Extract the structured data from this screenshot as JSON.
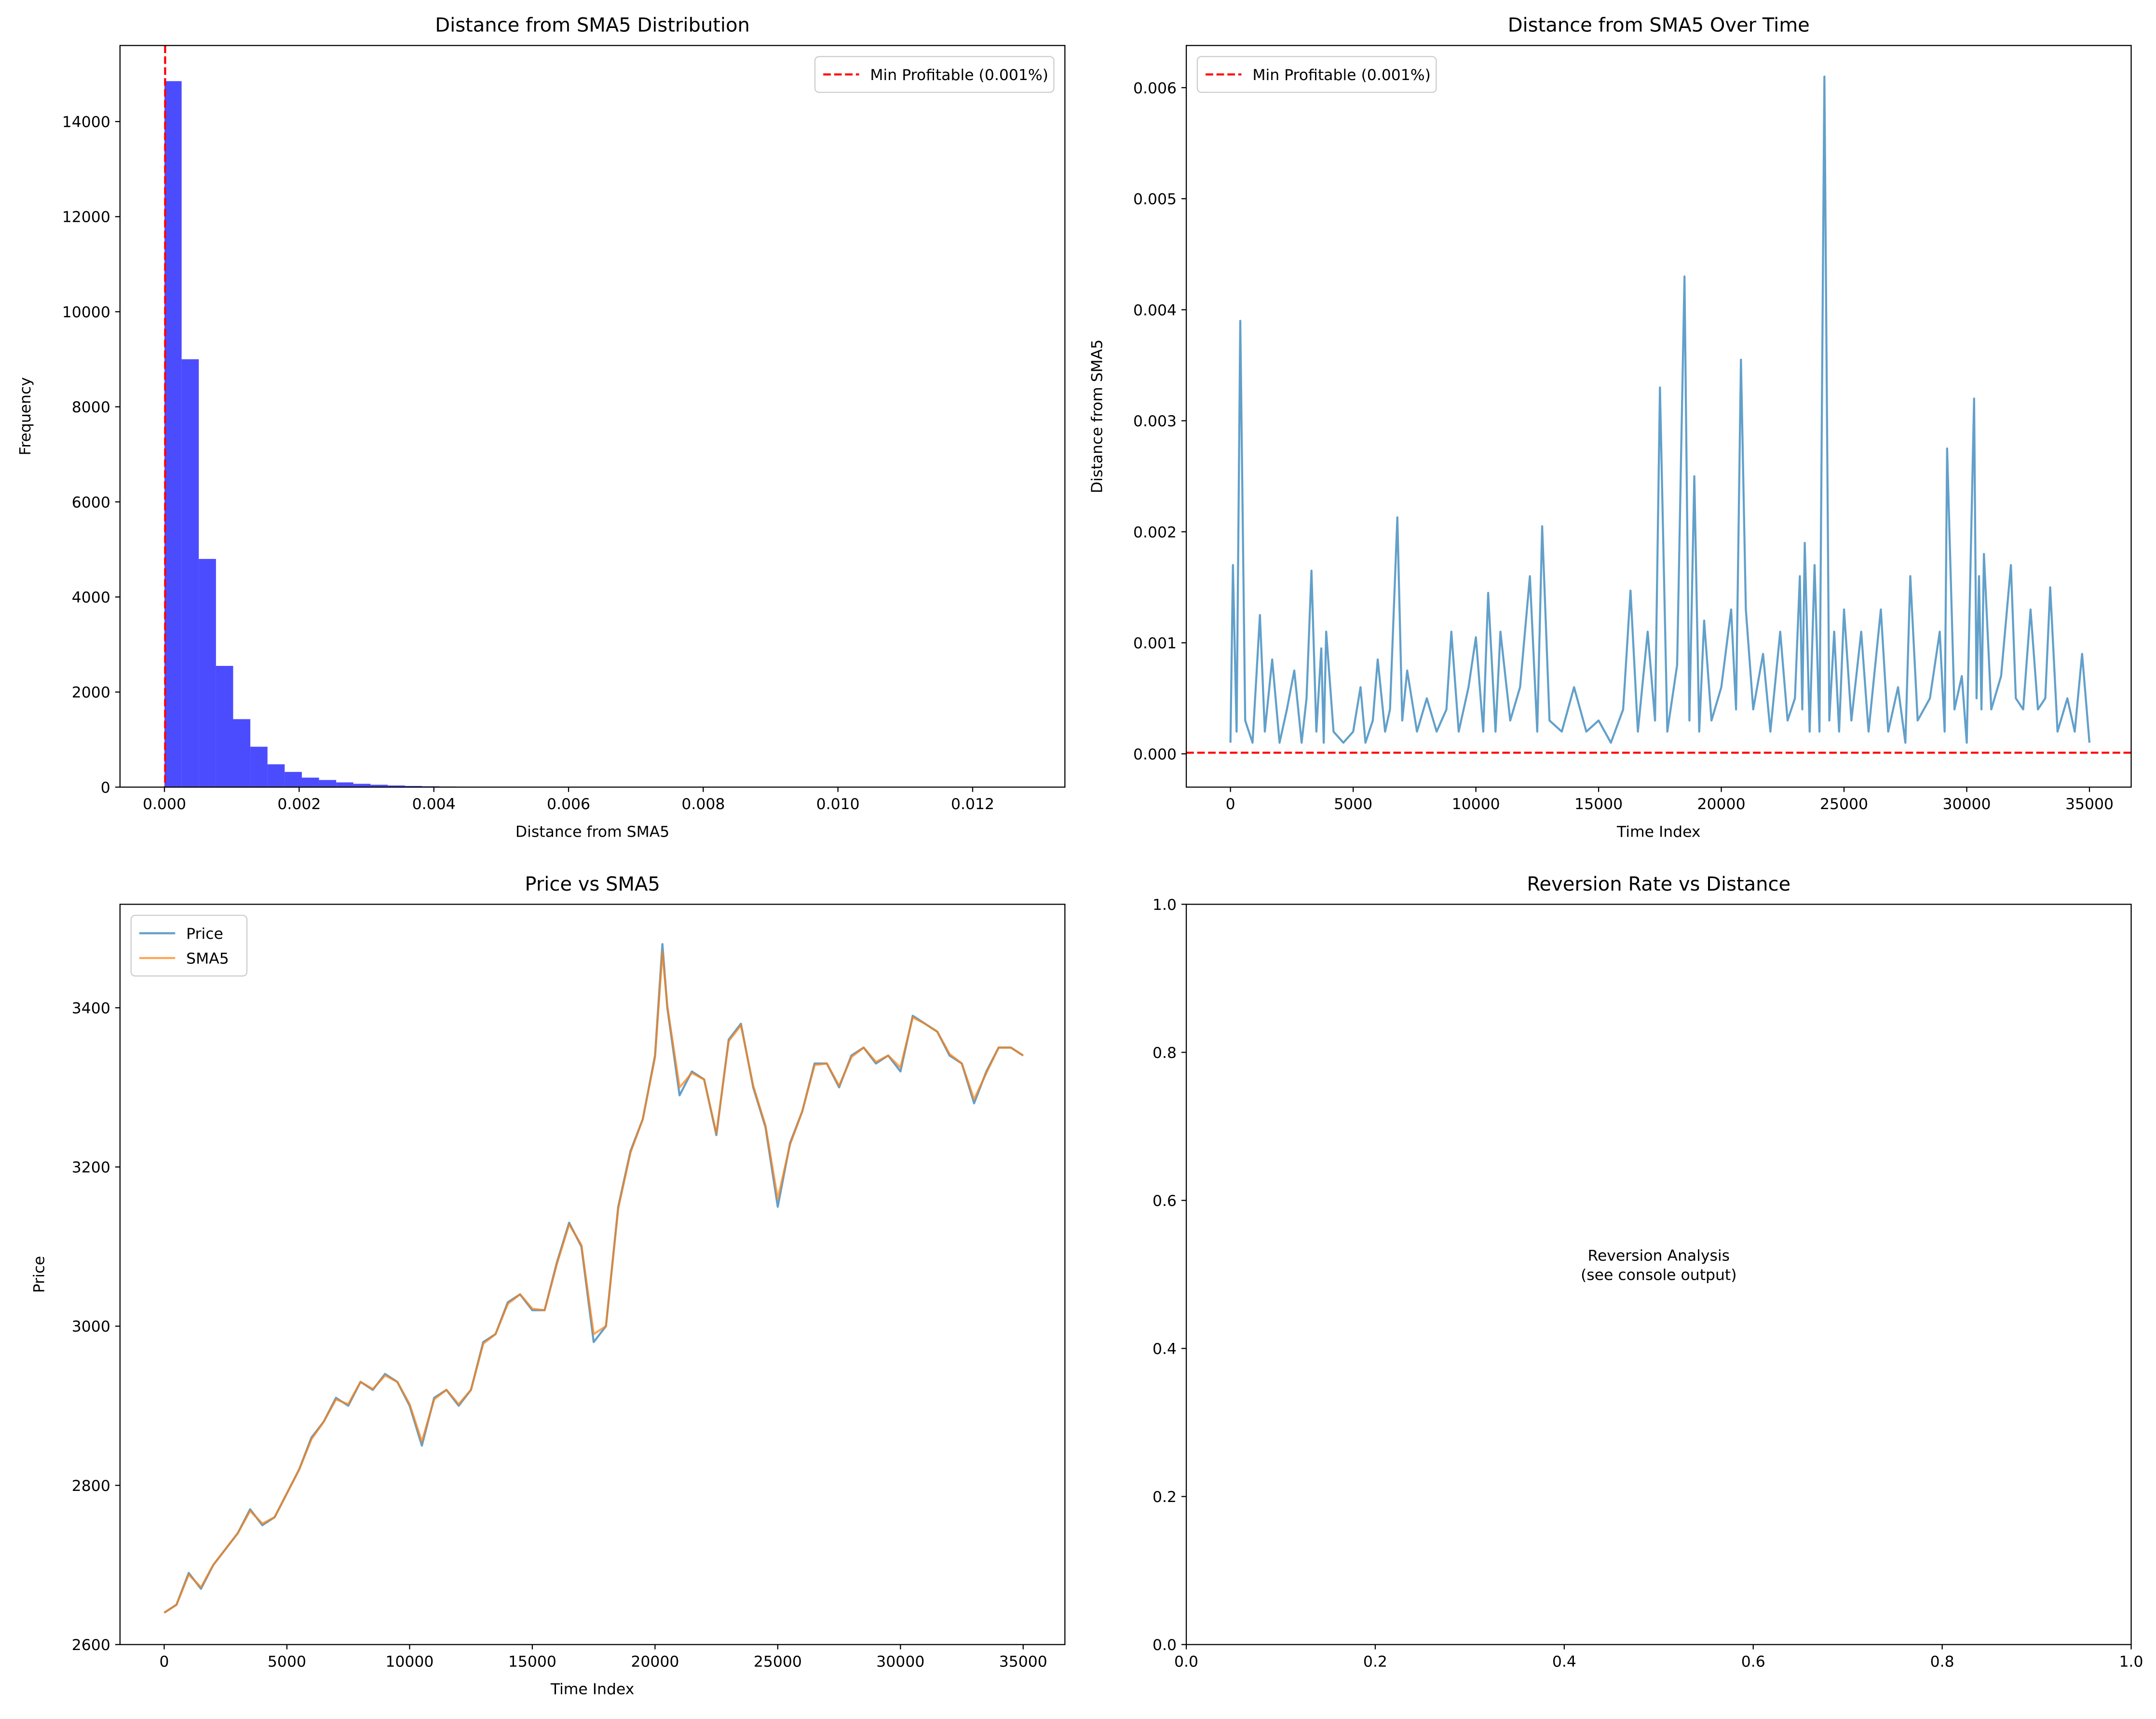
{
  "chart_data": [
    {
      "type": "histogram",
      "title": "Distance from SMA5 Distribution",
      "xlabel": "Distance from SMA5",
      "ylabel": "Frequency",
      "bins": [
        0,
        0.000255,
        0.00051,
        0.000765,
        0.00102,
        0.001275,
        0.00153,
        0.001785,
        0.00204,
        0.002295,
        0.00255,
        0.002805,
        0.00306,
        0.003315,
        0.00357,
        0.003825,
        0.00408,
        0.004335,
        0.00459,
        0.004845,
        0.0051,
        0.005355,
        0.00561,
        0.005865,
        0.00612,
        0.006375,
        0.00663,
        0.006885,
        0.00714,
        0.007395,
        0.00765,
        0.007905,
        0.00816,
        0.008415,
        0.00867,
        0.008925,
        0.00918,
        0.009435,
        0.00969,
        0.009945,
        0.0102,
        0.010455,
        0.01071,
        0.010965,
        0.01122,
        0.011475,
        0.01173,
        0.011985,
        0.01224,
        0.012495,
        0.01275
      ],
      "values": [
        14850,
        9000,
        4800,
        2550,
        1430,
        850,
        480,
        320,
        200,
        150,
        100,
        70,
        50,
        35,
        25,
        18,
        12,
        8,
        6,
        5,
        4,
        3,
        3,
        2,
        2,
        2,
        1,
        1,
        1,
        1,
        1,
        1,
        0,
        1,
        0,
        0,
        1,
        0,
        0,
        0,
        0,
        0,
        0,
        0,
        0,
        0,
        0,
        0,
        0,
        1
      ],
      "color": "#0000ff",
      "alpha": 0.7,
      "xlim": [
        -0.00066,
        0.01337
      ],
      "ylim": [
        0,
        15600
      ],
      "xticks": [
        {
          "value": 0,
          "label": "0.000"
        },
        {
          "value": 0.002,
          "label": "0.002"
        },
        {
          "value": 0.004,
          "label": "0.004"
        },
        {
          "value": 0.006,
          "label": "0.006"
        },
        {
          "value": 0.008,
          "label": "0.008"
        },
        {
          "value": 0.01,
          "label": "0.010"
        },
        {
          "value": 0.012,
          "label": "0.012"
        }
      ],
      "yticks": [
        0,
        2000,
        4000,
        6000,
        8000,
        10000,
        12000,
        14000
      ],
      "reference_line": {
        "name": "Min Profitable (0.001%)",
        "value": 1e-05,
        "color": "#ff0000",
        "orientation": "vertical"
      },
      "legend": "upper right"
    },
    {
      "type": "line",
      "title": "Distance from SMA5 Over Time",
      "xlabel": "Time Index",
      "ylabel": "Distance from SMA5",
      "x": [
        0,
        100,
        250,
        400,
        600,
        900,
        1200,
        1400,
        1700,
        2000,
        2300,
        2600,
        2900,
        3100,
        3300,
        3500,
        3700,
        3800,
        3900,
        4200,
        4600,
        5000,
        5300,
        5500,
        5800,
        6000,
        6300,
        6500,
        6800,
        7000,
        7200,
        7600,
        8000,
        8400,
        8800,
        9000,
        9300,
        9700,
        10000,
        10300,
        10500,
        10800,
        11000,
        11400,
        11800,
        12200,
        12500,
        12700,
        13000,
        13500,
        14000,
        14500,
        15000,
        15500,
        16000,
        16300,
        16600,
        17000,
        17300,
        17500,
        17800,
        18200,
        18500,
        18700,
        18900,
        19100,
        19300,
        19600,
        20000,
        20400,
        20600,
        20800,
        21000,
        21300,
        21700,
        22000,
        22400,
        22700,
        23000,
        23200,
        23300,
        23400,
        23600,
        23800,
        24000,
        24200,
        24400,
        24600,
        24800,
        25000,
        25300,
        25700,
        26000,
        26500,
        26800,
        27200,
        27500,
        27700,
        28000,
        28500,
        28900,
        29100,
        29200,
        29500,
        29800,
        30000,
        30300,
        30400,
        30500,
        30600,
        30700,
        31000,
        31400,
        31800,
        32000,
        32300,
        32600,
        32900,
        33200,
        33400,
        33700,
        34100,
        34400,
        34700,
        35000
      ],
      "series": [
        {
          "name": "Distance",
          "color": "#1f77b4",
          "values": [
            0.0001,
            0.0017,
            0.0002,
            0.0039,
            0.0003,
            0.0001,
            0.00125,
            0.0002,
            0.00085,
            0.0001,
            0.0004,
            0.00075,
            0.0001,
            0.0005,
            0.00165,
            0.0002,
            0.00095,
            0.0001,
            0.0011,
            0.0002,
            0.0001,
            0.0002,
            0.0006,
            0.0001,
            0.0003,
            0.00085,
            0.0002,
            0.0004,
            0.00213,
            0.0003,
            0.00075,
            0.0002,
            0.0005,
            0.0002,
            0.0004,
            0.0011,
            0.0002,
            0.0006,
            0.00105,
            0.0002,
            0.00145,
            0.0002,
            0.0011,
            0.0003,
            0.0006,
            0.0016,
            0.0002,
            0.00205,
            0.0003,
            0.0002,
            0.0006,
            0.0002,
            0.0003,
            0.0001,
            0.0004,
            0.00147,
            0.0002,
            0.0011,
            0.0003,
            0.0033,
            0.0002,
            0.0008,
            0.0043,
            0.0003,
            0.0025,
            0.0002,
            0.0012,
            0.0003,
            0.0006,
            0.0013,
            0.0004,
            0.00355,
            0.0013,
            0.0004,
            0.0009,
            0.0002,
            0.0011,
            0.0003,
            0.0005,
            0.0016,
            0.0004,
            0.0019,
            0.0002,
            0.0017,
            0.0002,
            0.0061,
            0.0003,
            0.0011,
            0.0002,
            0.0013,
            0.0003,
            0.0011,
            0.0002,
            0.0013,
            0.0002,
            0.0006,
            0.0001,
            0.0016,
            0.0003,
            0.0005,
            0.0011,
            0.0002,
            0.00275,
            0.0004,
            0.0007,
            0.0001,
            0.0032,
            0.0005,
            0.0016,
            0.0004,
            0.0018,
            0.0004,
            0.0007,
            0.0017,
            0.0005,
            0.0004,
            0.0013,
            0.0004,
            0.0005,
            0.0015,
            0.0002,
            0.0005,
            0.0002,
            0.0009,
            0.0001
          ]
        }
      ],
      "alpha": 0.7,
      "xlim": [
        -1800,
        36700
      ],
      "ylim": [
        -0.0003,
        0.00638
      ],
      "xticks": [
        0,
        5000,
        10000,
        15000,
        20000,
        25000,
        30000,
        35000
      ],
      "yticks": [
        {
          "value": 0,
          "label": "0.000"
        },
        {
          "value": 0.001,
          "label": "0.001"
        },
        {
          "value": 0.002,
          "label": "0.002"
        },
        {
          "value": 0.003,
          "label": "0.003"
        },
        {
          "value": 0.004,
          "label": "0.004"
        },
        {
          "value": 0.005,
          "label": "0.005"
        },
        {
          "value": 0.006,
          "label": "0.006"
        }
      ],
      "reference_line": {
        "name": "Min Profitable (0.001%)",
        "value": 1e-05,
        "color": "#ff0000",
        "orientation": "horizontal"
      },
      "legend": "upper left",
      "legend_series": false
    },
    {
      "type": "line",
      "title": "Price vs SMA5",
      "xlabel": "Time Index",
      "ylabel": "Price",
      "x": [
        0,
        500,
        1000,
        1500,
        2000,
        2500,
        3000,
        3500,
        4000,
        4500,
        5000,
        5500,
        6000,
        6500,
        7000,
        7500,
        8000,
        8500,
        9000,
        9500,
        10000,
        10500,
        11000,
        11500,
        12000,
        12500,
        13000,
        13500,
        14000,
        14500,
        15000,
        15500,
        16000,
        16500,
        17000,
        17500,
        18000,
        18500,
        19000,
        19500,
        20000,
        20300,
        20500,
        21000,
        21500,
        22000,
        22500,
        23000,
        23500,
        24000,
        24500,
        25000,
        25500,
        26000,
        26500,
        27000,
        27500,
        28000,
        28500,
        29000,
        29500,
        30000,
        30500,
        31000,
        31500,
        32000,
        32500,
        33000,
        33500,
        34000,
        34500,
        35000
      ],
      "series": [
        {
          "name": "Price",
          "color": "#1f77b4",
          "values": [
            2640,
            2650,
            2690,
            2670,
            2700,
            2720,
            2740,
            2770,
            2750,
            2760,
            2790,
            2820,
            2860,
            2880,
            2910,
            2900,
            2930,
            2920,
            2940,
            2930,
            2900,
            2850,
            2910,
            2920,
            2900,
            2920,
            2980,
            2990,
            3030,
            3040,
            3020,
            3020,
            3080,
            3130,
            3100,
            2980,
            3000,
            3150,
            3220,
            3260,
            3340,
            3480,
            3400,
            3290,
            3320,
            3310,
            3240,
            3360,
            3380,
            3300,
            3250,
            3150,
            3230,
            3270,
            3330,
            3330,
            3300,
            3340,
            3350,
            3330,
            3340,
            3320,
            3390,
            3380,
            3370,
            3340,
            3330,
            3280,
            3320,
            3350,
            3350,
            3340
          ]
        },
        {
          "name": "SMA5",
          "color": "#ff7f0e",
          "values": [
            2640,
            2650,
            2688,
            2672,
            2700,
            2720,
            2740,
            2768,
            2752,
            2760,
            2790,
            2820,
            2858,
            2880,
            2908,
            2902,
            2930,
            2921,
            2938,
            2930,
            2902,
            2855,
            2908,
            2920,
            2902,
            2920,
            2978,
            2990,
            3028,
            3040,
            3022,
            3020,
            3078,
            3128,
            3102,
            2990,
            3000,
            3148,
            3218,
            3260,
            3338,
            3470,
            3402,
            3300,
            3318,
            3310,
            3242,
            3358,
            3378,
            3302,
            3252,
            3160,
            3228,
            3270,
            3328,
            3330,
            3302,
            3338,
            3350,
            3332,
            3340,
            3325,
            3388,
            3380,
            3370,
            3342,
            3330,
            3285,
            3318,
            3350,
            3350,
            3340
          ]
        }
      ],
      "alpha": 0.7,
      "xlim": [
        -1800,
        36700
      ],
      "ylim": [
        2600,
        3530
      ],
      "xticks": [
        0,
        5000,
        10000,
        15000,
        20000,
        25000,
        30000,
        35000
      ],
      "yticks": [
        2600,
        2800,
        3000,
        3200,
        3400
      ],
      "legend": "upper left",
      "legend_series": true
    },
    {
      "type": "annotation",
      "title": "Reversion Rate vs Distance",
      "text": [
        "Reversion Analysis",
        "(see console output)"
      ],
      "xlim": [
        0,
        1
      ],
      "ylim": [
        0,
        1
      ],
      "xticks": [
        {
          "value": 0,
          "label": "0.0"
        },
        {
          "value": 0.2,
          "label": "0.2"
        },
        {
          "value": 0.4,
          "label": "0.4"
        },
        {
          "value": 0.6,
          "label": "0.6"
        },
        {
          "value": 0.8,
          "label": "0.8"
        },
        {
          "value": 1,
          "label": "1.0"
        }
      ],
      "yticks": [
        {
          "value": 0,
          "label": "0.0"
        },
        {
          "value": 0.2,
          "label": "0.2"
        },
        {
          "value": 0.4,
          "label": "0.4"
        },
        {
          "value": 0.6,
          "label": "0.6"
        },
        {
          "value": 0.8,
          "label": "0.8"
        },
        {
          "value": 1,
          "label": "1.0"
        }
      ]
    }
  ]
}
